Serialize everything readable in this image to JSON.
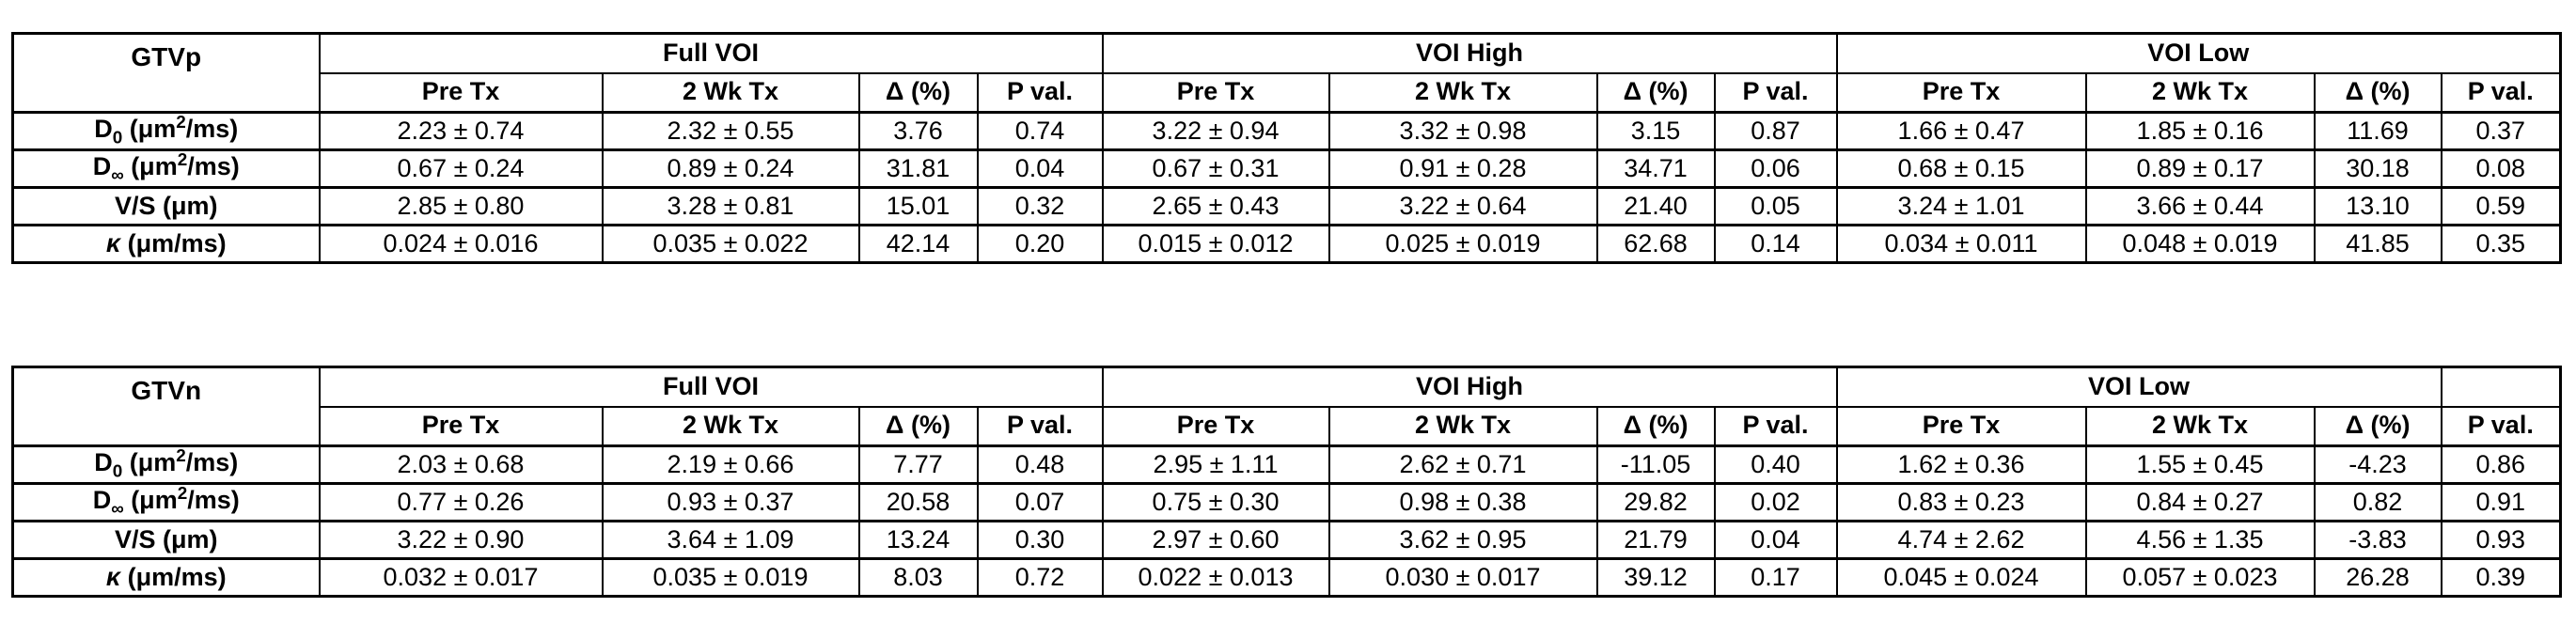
{
  "page": {
    "background_color": "#ffffff",
    "text_color": "#000000",
    "border_color": "#000000"
  },
  "tables": [
    {
      "label": "GTVp",
      "groups": [
        "Full VOI",
        "VOI High",
        "VOI Low"
      ],
      "col_headers": [
        "Pre Tx",
        "2 Wk Tx",
        "Δ (%)",
        "P val."
      ],
      "rows": [
        {
          "label_html": "D<sub>0</sub> (μm<sup>2</sup>/ms)",
          "label_text": "D0 (μm2/ms)",
          "cells": [
            "2.23 ± 0.74",
            "2.32 ± 0.55",
            "3.76",
            "0.74",
            "3.22 ± 0.94",
            "3.32 ± 0.98",
            "3.15",
            "0.87",
            "1.66 ± 0.47",
            "1.85 ± 0.16",
            "11.69",
            "0.37"
          ]
        },
        {
          "label_html": "D<sub>∞</sub> (μm<sup>2</sup>/ms)",
          "label_text": "D∞ (μm2/ms)",
          "cells": [
            "0.67 ± 0.24",
            "0.89 ± 0.24",
            "31.81",
            "0.04",
            "0.67 ± 0.31",
            "0.91 ± 0.28",
            "34.71",
            "0.06",
            "0.68 ± 0.15",
            "0.89 ± 0.17",
            "30.18",
            "0.08"
          ]
        },
        {
          "label_html": "V/S (μm)",
          "label_text": "V/S (μm)",
          "cells": [
            "2.85 ± 0.80",
            "3.28 ± 0.81",
            "15.01",
            "0.32",
            "2.65 ± 0.43",
            "3.22 ± 0.64",
            "21.40",
            "0.05",
            "3.24 ± 1.01",
            "3.66 ± 0.44",
            "13.10",
            "0.59"
          ]
        },
        {
          "label_html": "<i>κ</i> (μm/ms)",
          "label_text": "κ (μm/ms)",
          "cells": [
            "0.024 ± 0.016",
            "0.035 ± 0.022",
            "42.14",
            "0.20",
            "0.015 ± 0.012",
            "0.025 ± 0.019",
            "62.68",
            "0.14",
            "0.034 ± 0.011",
            "0.048 ± 0.019",
            "41.85",
            "0.35"
          ]
        }
      ]
    },
    {
      "label": "GTVn",
      "groups": [
        "Full VOI",
        "VOI High",
        "VOI Low"
      ],
      "col_headers": [
        "Pre Tx",
        "2 Wk Tx",
        "Δ (%)",
        "P val."
      ],
      "rows": [
        {
          "label_html": "D<sub>0</sub> (μm<sup>2</sup>/ms)",
          "label_text": "D0 (μm2/ms)",
          "cells": [
            "2.03 ± 0.68",
            "2.19 ± 0.66",
            "7.77",
            "0.48",
            "2.95 ± 1.11",
            "2.62 ± 0.71",
            "-11.05",
            "0.40",
            "1.62 ± 0.36",
            "1.55 ± 0.45",
            "-4.23",
            "0.86"
          ]
        },
        {
          "label_html": "D<sub>∞</sub> (μm<sup>2</sup>/ms)",
          "label_text": "D∞ (μm2/ms)",
          "cells": [
            "0.77 ± 0.26",
            "0.93 ± 0.37",
            "20.58",
            "0.07",
            "0.75 ± 0.30",
            "0.98 ± 0.38",
            "29.82",
            "0.02",
            "0.83 ± 0.23",
            "0.84 ± 0.27",
            "0.82",
            "0.91"
          ]
        },
        {
          "label_html": "V/S (μm)",
          "label_text": "V/S (μm)",
          "cells": [
            "3.22 ± 0.90",
            "3.64 ± 1.09",
            "13.24",
            "0.30",
            "2.97 ± 0.60",
            "3.62 ± 0.95",
            "21.79",
            "0.04",
            "4.74 ± 2.62",
            "4.56 ± 1.35",
            "-3.83",
            "0.93"
          ]
        },
        {
          "label_html": "<i>κ</i> (μm/ms)",
          "label_text": "κ (μm/ms)",
          "cells": [
            "0.032 ± 0.017",
            "0.035 ± 0.019",
            "8.03",
            "0.72",
            "0.022 ± 0.013",
            "0.030 ± 0.017",
            "39.12",
            "0.17",
            "0.045 ± 0.024",
            "0.057 ± 0.023",
            "26.28",
            "0.39"
          ]
        }
      ]
    }
  ]
}
